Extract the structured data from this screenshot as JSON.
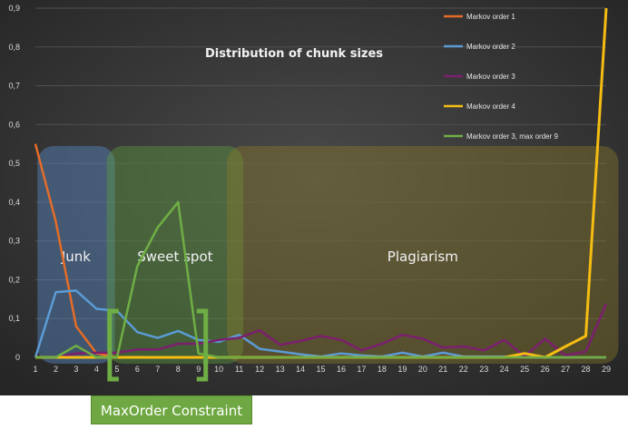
{
  "chart_data": {
    "type": "line",
    "title": "Distribution of chunk sizes",
    "categories": [
      "1",
      "2",
      "3",
      "4",
      "5",
      "6",
      "7",
      "8",
      "9",
      "10",
      "11",
      "12",
      "13",
      "14",
      "15",
      "16",
      "17",
      "18",
      "19",
      "20",
      "21",
      "22",
      "23",
      "24",
      "25",
      "26",
      "27",
      "28",
      "29"
    ],
    "y_ticks": [
      "0",
      "0,1",
      "0,2",
      "0,3",
      "0,4",
      "0,5",
      "0,6",
      "0,7",
      "0,8",
      "0,9"
    ],
    "ylim": [
      0,
      0.9
    ],
    "grid": true,
    "legend_position": "top-right",
    "series": [
      {
        "name": "Markov order 1",
        "color": "#e46c28",
        "values": [
          0.55,
          0.35,
          0.08,
          0.01,
          0,
          0,
          0,
          0,
          0,
          0,
          0,
          0,
          0,
          0,
          0,
          0,
          0,
          0,
          0,
          0,
          0,
          0,
          0,
          0,
          0,
          0,
          0,
          0,
          0
        ]
      },
      {
        "name": "Markov order 2",
        "color": "#5b9bd5",
        "values": [
          0,
          0.168,
          0.172,
          0.125,
          0.12,
          0.065,
          0.05,
          0.068,
          0.045,
          0.04,
          0.058,
          0.022,
          0.015,
          0.008,
          0.002,
          0.01,
          0.005,
          0.002,
          0.012,
          0.002,
          0.012,
          0.002,
          0.002,
          0.002,
          0,
          0,
          0,
          0,
          0
        ]
      },
      {
        "name": "Markov order 3",
        "color": "#7b1f6e",
        "values": [
          0,
          0,
          0.01,
          0.012,
          0.012,
          0.02,
          0.02,
          0.035,
          0.035,
          0.045,
          0.05,
          0.07,
          0.032,
          0.042,
          0.055,
          0.045,
          0.018,
          0.035,
          0.058,
          0.048,
          0.025,
          0.028,
          0.018,
          0.045,
          0.002,
          0.048,
          0.005,
          0.015,
          0.138
        ]
      },
      {
        "name": "Markov order 4",
        "color": "#f5bd12",
        "values": [
          0,
          0,
          0,
          0,
          0,
          0,
          0,
          0,
          0,
          0,
          0,
          0,
          0,
          0,
          0,
          0,
          0,
          0,
          0,
          0,
          0,
          0,
          0,
          0,
          0.01,
          0,
          0.028,
          0.055,
          0.9
        ]
      },
      {
        "name": "Markov order 3, max order 9",
        "color": "#6fae45",
        "values": [
          0,
          0,
          0.03,
          0,
          0,
          0.235,
          0.335,
          0.4,
          0.01,
          0,
          0,
          0,
          0,
          0,
          0,
          0,
          0,
          0,
          0,
          0,
          0,
          0,
          0,
          0,
          0,
          0,
          0,
          0,
          0
        ]
      }
    ],
    "annotations": {
      "regions": [
        {
          "label": "Junk",
          "from": 1.1,
          "to": 4.9,
          "color": "#5b8ccc"
        },
        {
          "label": "Sweet spot",
          "from": 4.5,
          "to": 11.2,
          "color": "#5c9e40"
        },
        {
          "label": "Plagiarism",
          "from": 10.4,
          "to": 29.6,
          "color": "#8a7a2a"
        }
      ],
      "bracket_from": 5,
      "bracket_to": 9,
      "constraint_label": "MaxOrder Constraint"
    }
  }
}
